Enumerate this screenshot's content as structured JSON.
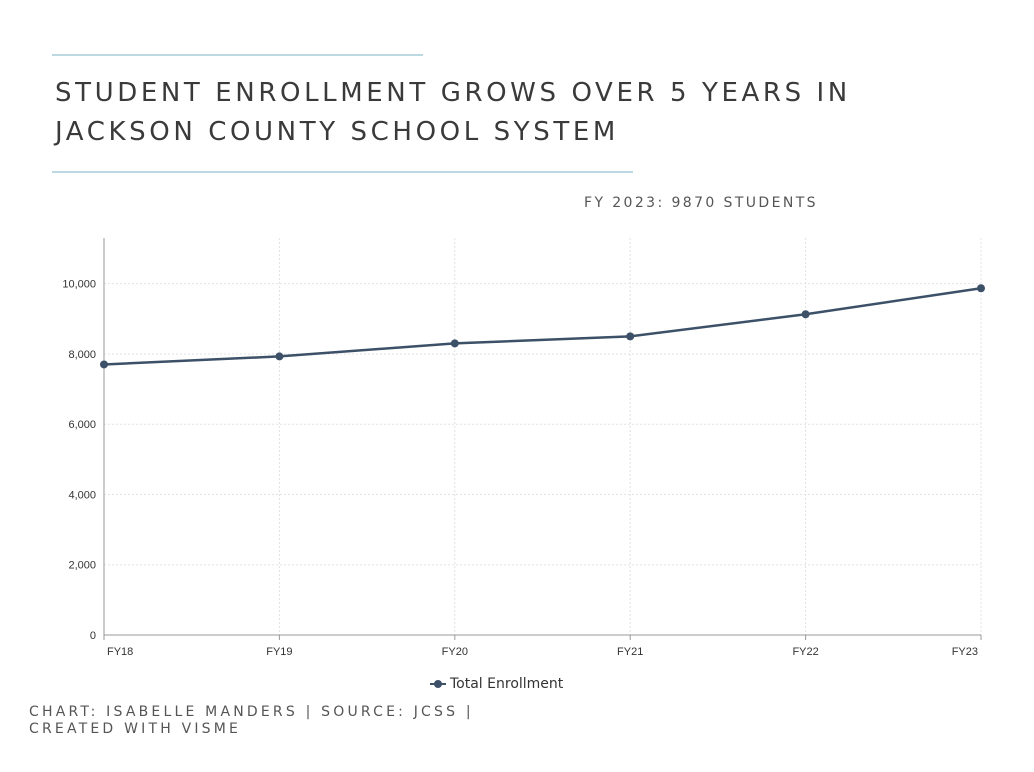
{
  "title": {
    "line1": "STUDENT ENROLLMENT GROWS OVER 5 YEARS IN",
    "line2": "JACKSON COUNTY SCHOOL SYSTEM"
  },
  "annotation": "FY 2023: 9870 STUDENTS",
  "credit": {
    "line1": "CHART: ISABELLE MANDERS | SOURCE: JCSS |",
    "line2": "CREATED WITH VISME"
  },
  "colors": {
    "rule": "#bcd8e0",
    "series": "#3c5068",
    "grid": "#e2e2e2",
    "axis": "#999999",
    "text": "#333333"
  },
  "chart_data": {
    "type": "line",
    "title": "",
    "xlabel": "",
    "ylabel": "",
    "categories": [
      "FY18",
      "FY19",
      "FY20",
      "FY21",
      "FY22",
      "FY23"
    ],
    "series": [
      {
        "name": "Total Enrollment",
        "values": [
          7700,
          7930,
          8300,
          8500,
          9130,
          9870
        ]
      }
    ],
    "ylim": [
      0,
      11300
    ],
    "yticks": [
      0,
      2000,
      4000,
      6000,
      8000,
      10000
    ],
    "ytick_labels": [
      "0",
      "2,000",
      "4,000",
      "6,000",
      "8,000",
      "10,000"
    ],
    "grid": true,
    "legend": "bottom-center"
  }
}
